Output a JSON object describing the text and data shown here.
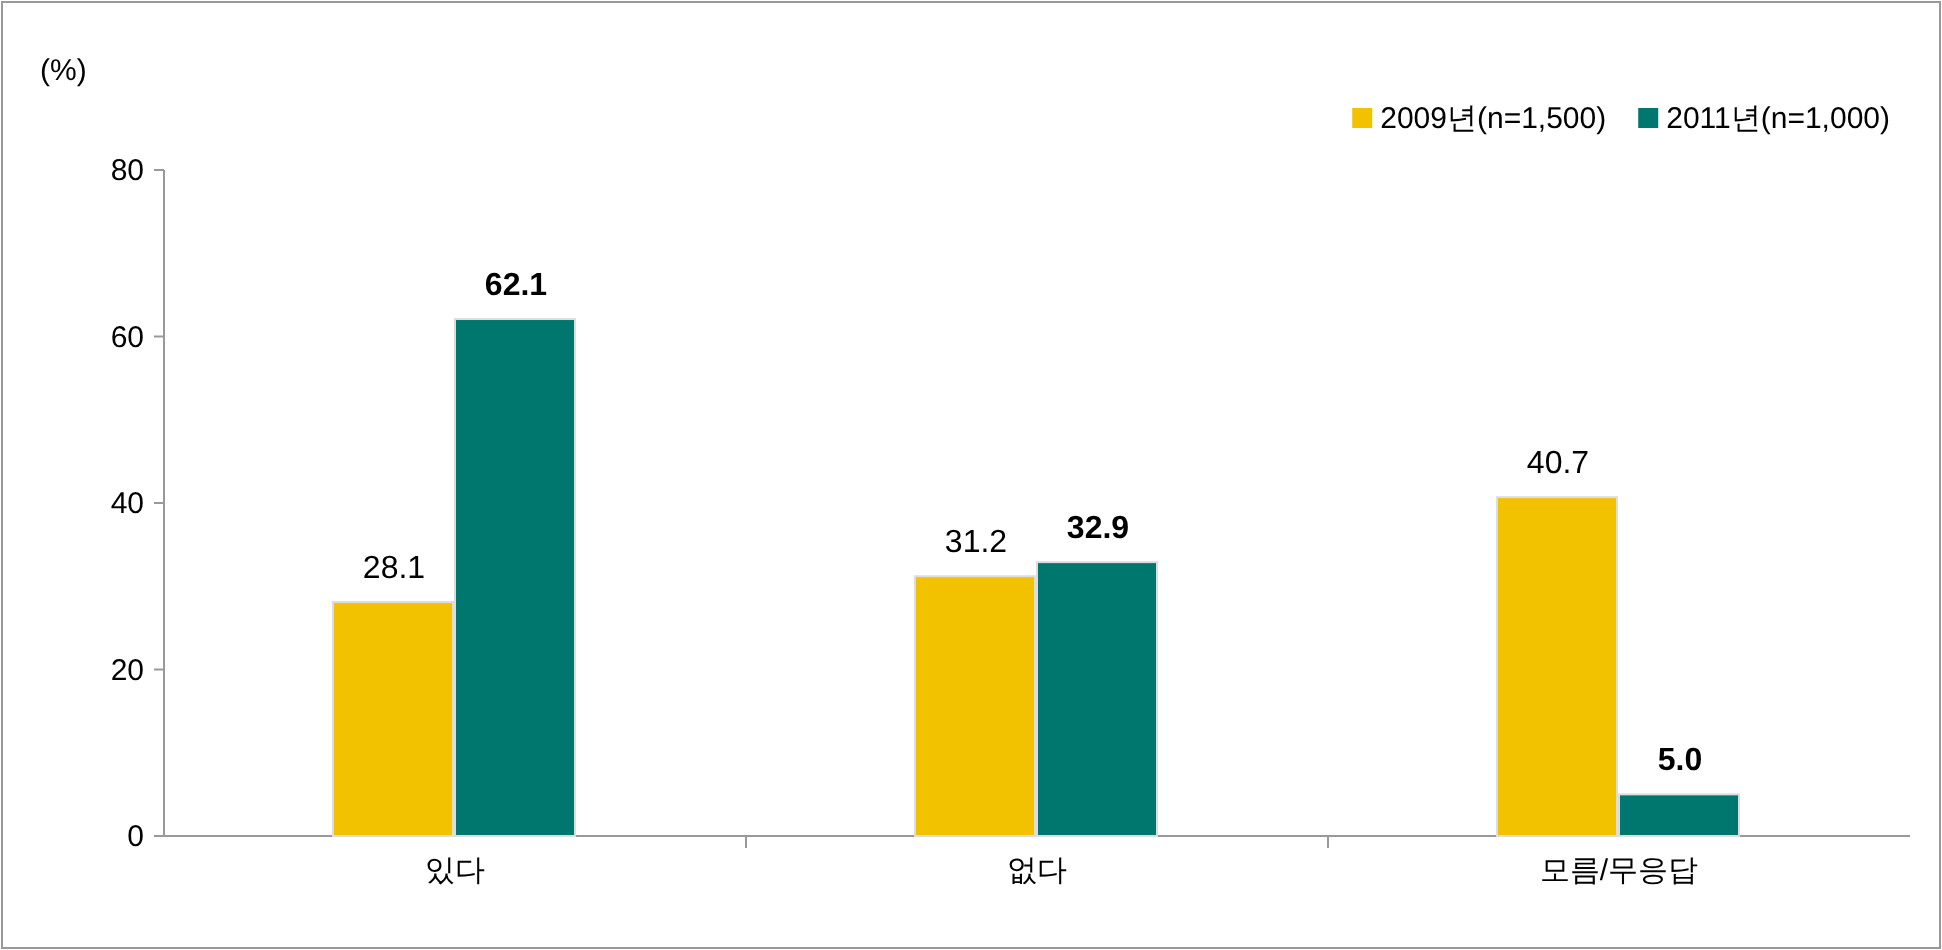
{
  "chart_data": {
    "type": "bar",
    "ylabel": "(%)",
    "categories": [
      "있다",
      "없다",
      "모름/무응답"
    ],
    "series": [
      {
        "name": "2009년(n=1,500)",
        "color": "#f2c200",
        "values": [
          28.1,
          31.2,
          40.7
        ],
        "value_labels": [
          "28.1",
          "31.2",
          "40.7"
        ]
      },
      {
        "name": "2011년(n=1,000)",
        "color": "#00776e",
        "values": [
          62.1,
          32.9,
          5.0
        ],
        "value_labels": [
          "62.1",
          "32.9",
          "5.0"
        ]
      }
    ],
    "ylim": [
      0,
      80
    ],
    "yticks": [
      0,
      20,
      40,
      60,
      80
    ],
    "grid": false,
    "legend": "top right"
  }
}
